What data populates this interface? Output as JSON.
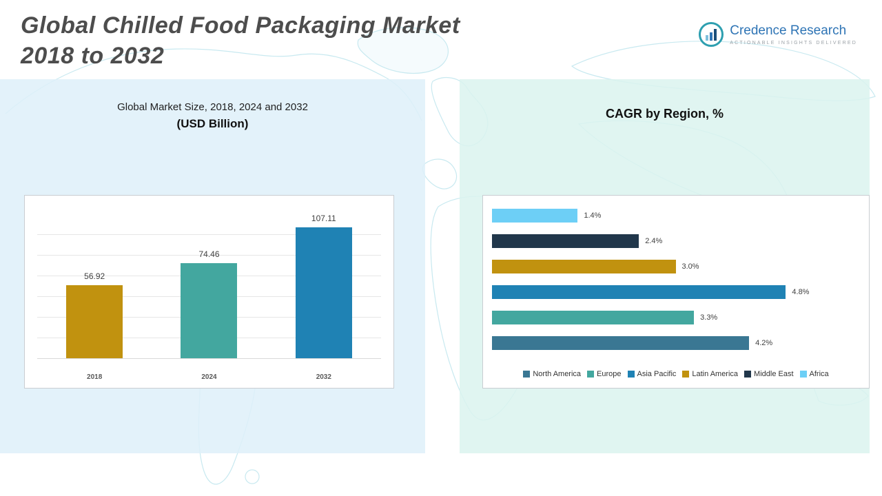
{
  "header": {
    "title_line1": "Global Chilled Food Packaging Market",
    "title_line2": "2018 to 2032"
  },
  "logo": {
    "brand": "Credence Research",
    "tagline": "Actionable Insights Delivered"
  },
  "chart_data": [
    {
      "type": "bar",
      "title": "Global Market Size, 2018, 2024 and 2032",
      "subtitle": "(USD Billion)",
      "categories": [
        "2018",
        "2024",
        "2032"
      ],
      "values": [
        56.92,
        74.46,
        107.11
      ],
      "value_labels": [
        "56.92",
        "74.46",
        "107.11"
      ],
      "bar_colors": [
        "#C1920F",
        "#43A79F",
        "#1F82B4"
      ],
      "ylim": [
        0,
        113
      ],
      "grid": true,
      "legend_position": "none"
    },
    {
      "type": "bar",
      "orientation": "horizontal",
      "title": "CAGR by Region, %",
      "xlim": [
        0,
        6
      ],
      "rows_top_to_bottom": [
        {
          "region": "Africa",
          "value": 1.4,
          "label": "1.4%",
          "color": "#6DCFF6"
        },
        {
          "region": "Middle East",
          "value": 2.4,
          "label": "2.4%",
          "color": "#21374B"
        },
        {
          "region": "Latin America",
          "value": 3.0,
          "label": "3.0%",
          "color": "#C1920F"
        },
        {
          "region": "Asia Pacific",
          "value": 4.8,
          "label": "4.8%",
          "color": "#1F82B4"
        },
        {
          "region": "Europe",
          "value": 3.3,
          "label": "3.3%",
          "color": "#43A79F"
        },
        {
          "region": "North America",
          "value": 4.2,
          "label": "4.2%",
          "color": "#3A7793"
        }
      ],
      "legend": [
        {
          "label": "North America",
          "color": "#3A7793"
        },
        {
          "label": "Europe",
          "color": "#43A79F"
        },
        {
          "label": "Asia Pacific",
          "color": "#1F82B4"
        },
        {
          "label": "Latin America",
          "color": "#C1920F"
        },
        {
          "label": "Middle East",
          "color": "#21374B"
        },
        {
          "label": "Africa",
          "color": "#6DCFF6"
        }
      ],
      "grid": false,
      "legend_position": "bottom"
    }
  ]
}
